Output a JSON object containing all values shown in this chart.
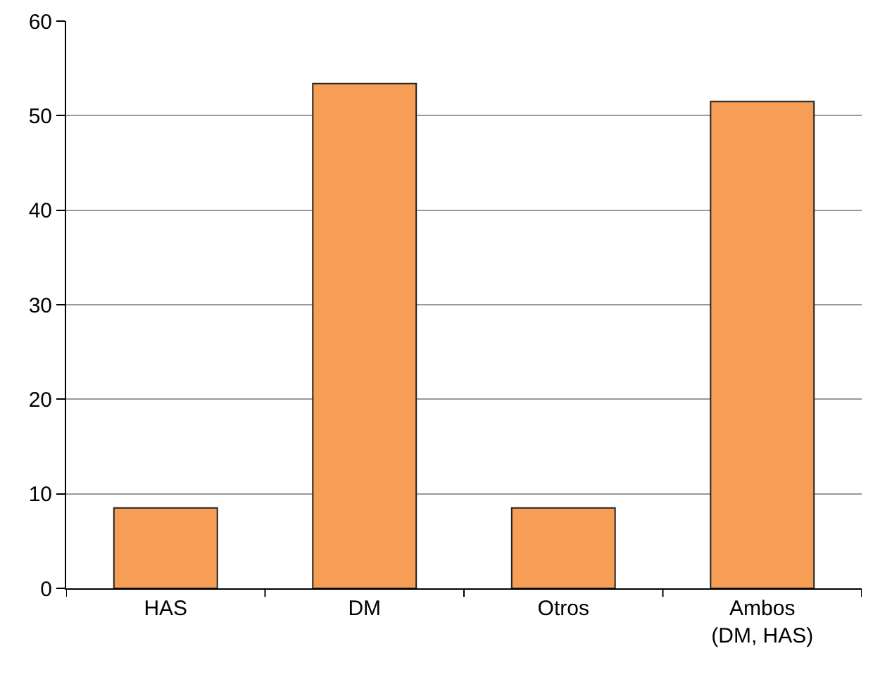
{
  "chart_data": {
    "type": "bar",
    "categories": [
      "HAS",
      "DM",
      "Otros",
      "Ambos\n(DM, HAS)"
    ],
    "values": [
      8.5,
      53.4,
      8.5,
      51.5
    ],
    "color": "#f79e56",
    "ylim": [
      0,
      60
    ],
    "yticks": [
      0,
      10,
      20,
      30,
      40,
      50,
      60
    ],
    "grid": "y"
  }
}
